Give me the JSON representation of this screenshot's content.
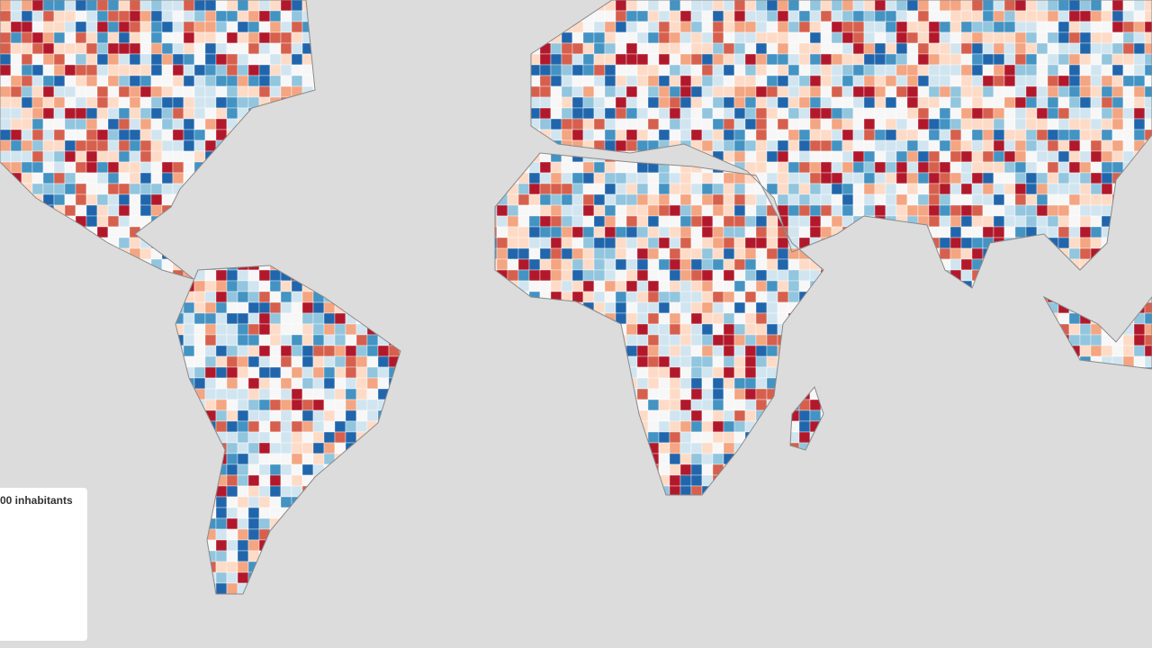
{
  "legend": {
    "title": "00 inhabitants"
  }
}
